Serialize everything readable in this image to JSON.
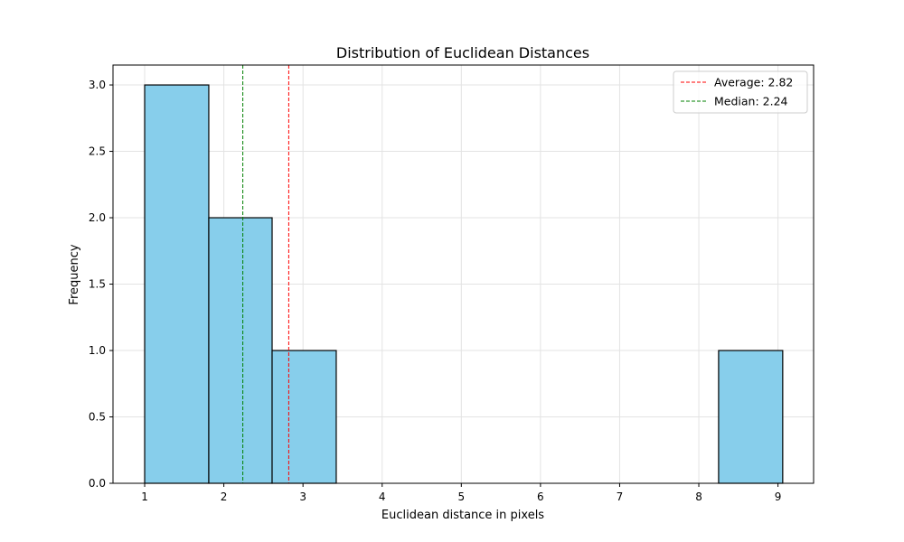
{
  "chart_data": {
    "type": "bar",
    "title": "Distribution of Euclidean Distances",
    "xlabel": "Euclidean distance in pixels",
    "ylabel": "Frequency",
    "xlim": [
      0.6,
      9.45
    ],
    "ylim": [
      0,
      3.15
    ],
    "x_ticks": [
      "1",
      "2",
      "3",
      "4",
      "5",
      "6",
      "7",
      "8",
      "9"
    ],
    "y_ticks": [
      "0.0",
      "0.5",
      "1.0",
      "1.5",
      "2.0",
      "2.5",
      "3.0"
    ],
    "bins": [
      {
        "start": 1.0,
        "end": 1.81,
        "count": 3
      },
      {
        "start": 1.81,
        "end": 2.61,
        "count": 2
      },
      {
        "start": 2.61,
        "end": 3.42,
        "count": 1
      },
      {
        "start": 3.42,
        "end": 4.22,
        "count": 0
      },
      {
        "start": 4.22,
        "end": 5.03,
        "count": 0
      },
      {
        "start": 5.03,
        "end": 5.84,
        "count": 0
      },
      {
        "start": 5.84,
        "end": 6.64,
        "count": 0
      },
      {
        "start": 6.64,
        "end": 7.45,
        "count": 0
      },
      {
        "start": 7.45,
        "end": 8.25,
        "count": 0
      },
      {
        "start": 8.25,
        "end": 9.06,
        "count": 1
      }
    ],
    "reference_lines": [
      {
        "label": "Average: 2.82",
        "x": 2.82,
        "color": "#ff0000"
      },
      {
        "label": "Median: 2.24",
        "x": 2.24,
        "color": "#008000"
      }
    ],
    "bar_color": "#87ceeb",
    "bar_edge_color": "#000000",
    "grid": true,
    "legend_position": "top-right"
  }
}
